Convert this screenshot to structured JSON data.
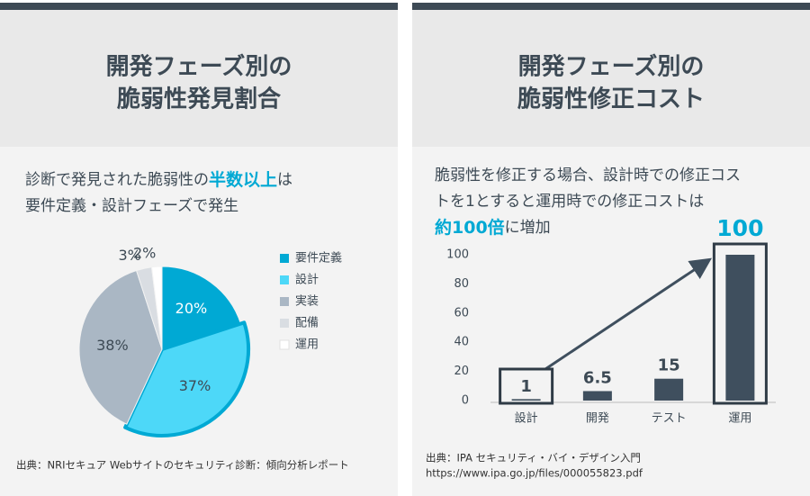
{
  "chart_data": [
    {
      "type": "pie",
      "title": [
        "開発フェーズ別の",
        "脆弱性発見割合"
      ],
      "subtitle": [
        [
          {
            "text": "診断で発見された脆弱性の",
            "emphasis": false
          },
          {
            "text": "半数以上",
            "emphasis": true
          },
          {
            "text": "は",
            "emphasis": false
          }
        ],
        [
          {
            "text": "要件定義・設計フェーズで発生",
            "emphasis": false
          }
        ]
      ],
      "categories": [
        "要件定義",
        "設計",
        "実装",
        "配備",
        "運用"
      ],
      "values": [
        20,
        37,
        38,
        3,
        2
      ],
      "value_labels": [
        "20%",
        "37%",
        "38%",
        "3%",
        "2%"
      ],
      "colors": [
        "#00a9d4",
        "#4dd8f8",
        "#aab7c4",
        "#d9dde2",
        "#ffffff"
      ],
      "highlight": [
        false,
        true,
        false,
        false,
        false
      ],
      "legend": "right",
      "source": [
        "出典：NRIセキュア Webサイトのセキュリティ診断：傾向分析レポート"
      ]
    },
    {
      "type": "bar",
      "title": [
        "開発フェーズ別の",
        "脆弱性修正コスト"
      ],
      "subtitle": [
        [
          {
            "text": "脆弱性を修正する場合、設計時での修正コス",
            "emphasis": false
          }
        ],
        [
          {
            "text": "トを1とすると運用時での修正コストは",
            "emphasis": false
          }
        ],
        [
          {
            "text": "約100倍",
            "emphasis": true
          },
          {
            "text": "に増加",
            "emphasis": false
          }
        ]
      ],
      "categories": [
        "設計",
        "開発",
        "テスト",
        "運用"
      ],
      "values": [
        1,
        6.5,
        15,
        100
      ],
      "color": "#3f4f5e",
      "highlight": [
        true,
        false,
        false,
        true
      ],
      "ylim": [
        0,
        100
      ],
      "yticks": [
        0,
        20,
        40,
        60,
        80,
        100
      ],
      "grid": false,
      "source": [
        "出典：IPA セキュリティ・バイ・デザイン入門",
        "https://www.ipa.go.jp/files/000055823.pdf"
      ]
    }
  ]
}
